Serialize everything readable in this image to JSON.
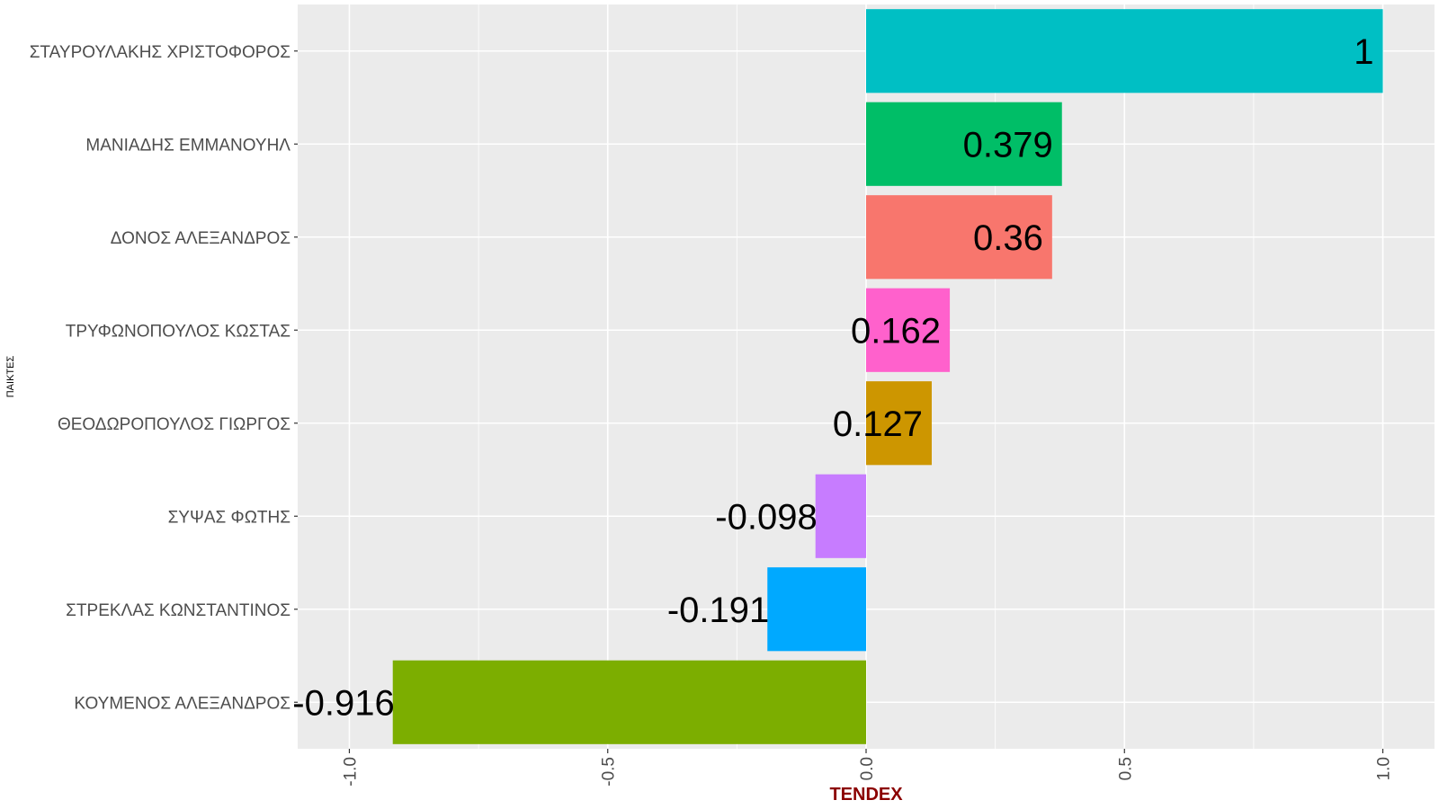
{
  "chart_data": {
    "type": "bar",
    "orientation": "horizontal",
    "xlabel": "TENDEX",
    "ylabel": "ΠΑΙΚΤΕΣ",
    "xlim": [
      -1.1,
      1.1
    ],
    "x_ticks": [
      -1.0,
      -0.5,
      0.0,
      0.5,
      1.0
    ],
    "x_tick_labels": [
      "-1.0",
      "-0.5",
      "0.0",
      "0.5",
      "1.0"
    ],
    "grid": true,
    "legend": "none",
    "categories": [
      "ΣΤΑΥΡΟΥΛΑΚΗΣ ΧΡΙΣΤΟΦΟΡΟΣ",
      "ΜΑΝΙΑΔΗΣ ΕΜΜΑΝΟΥΗΛ",
      "ΔΟΝΟΣ ΑΛΕΞΑΝΔΡΟΣ",
      "ΤΡΥΦΩΝΟΠΟΥΛΟΣ ΚΩΣΤΑΣ",
      "ΘΕΟΔΩΡΟΠΟΥΛΟΣ ΓΙΩΡΓΟΣ",
      "ΣΥΨΑΣ ΦΩΤΗΣ",
      "ΣΤΡΕΚΛΑΣ ΚΩΝΣΤΑΝΤΙΝΟΣ",
      "ΚΟΥΜΕΝΟΣ ΑΛΕΞΑΝΔΡΟΣ"
    ],
    "values": [
      1,
      0.379,
      0.36,
      0.162,
      0.127,
      -0.098,
      -0.191,
      -0.916
    ],
    "value_labels": [
      "1",
      "0.379",
      "0.36",
      "0.162",
      "0.127",
      "-0.098",
      "-0.191",
      "-0.916"
    ],
    "colors": [
      "#00BFC4",
      "#00BE67",
      "#F8766D",
      "#FF61CC",
      "#CD9600",
      "#C77CFF",
      "#00A9FF",
      "#7CAE00"
    ]
  }
}
